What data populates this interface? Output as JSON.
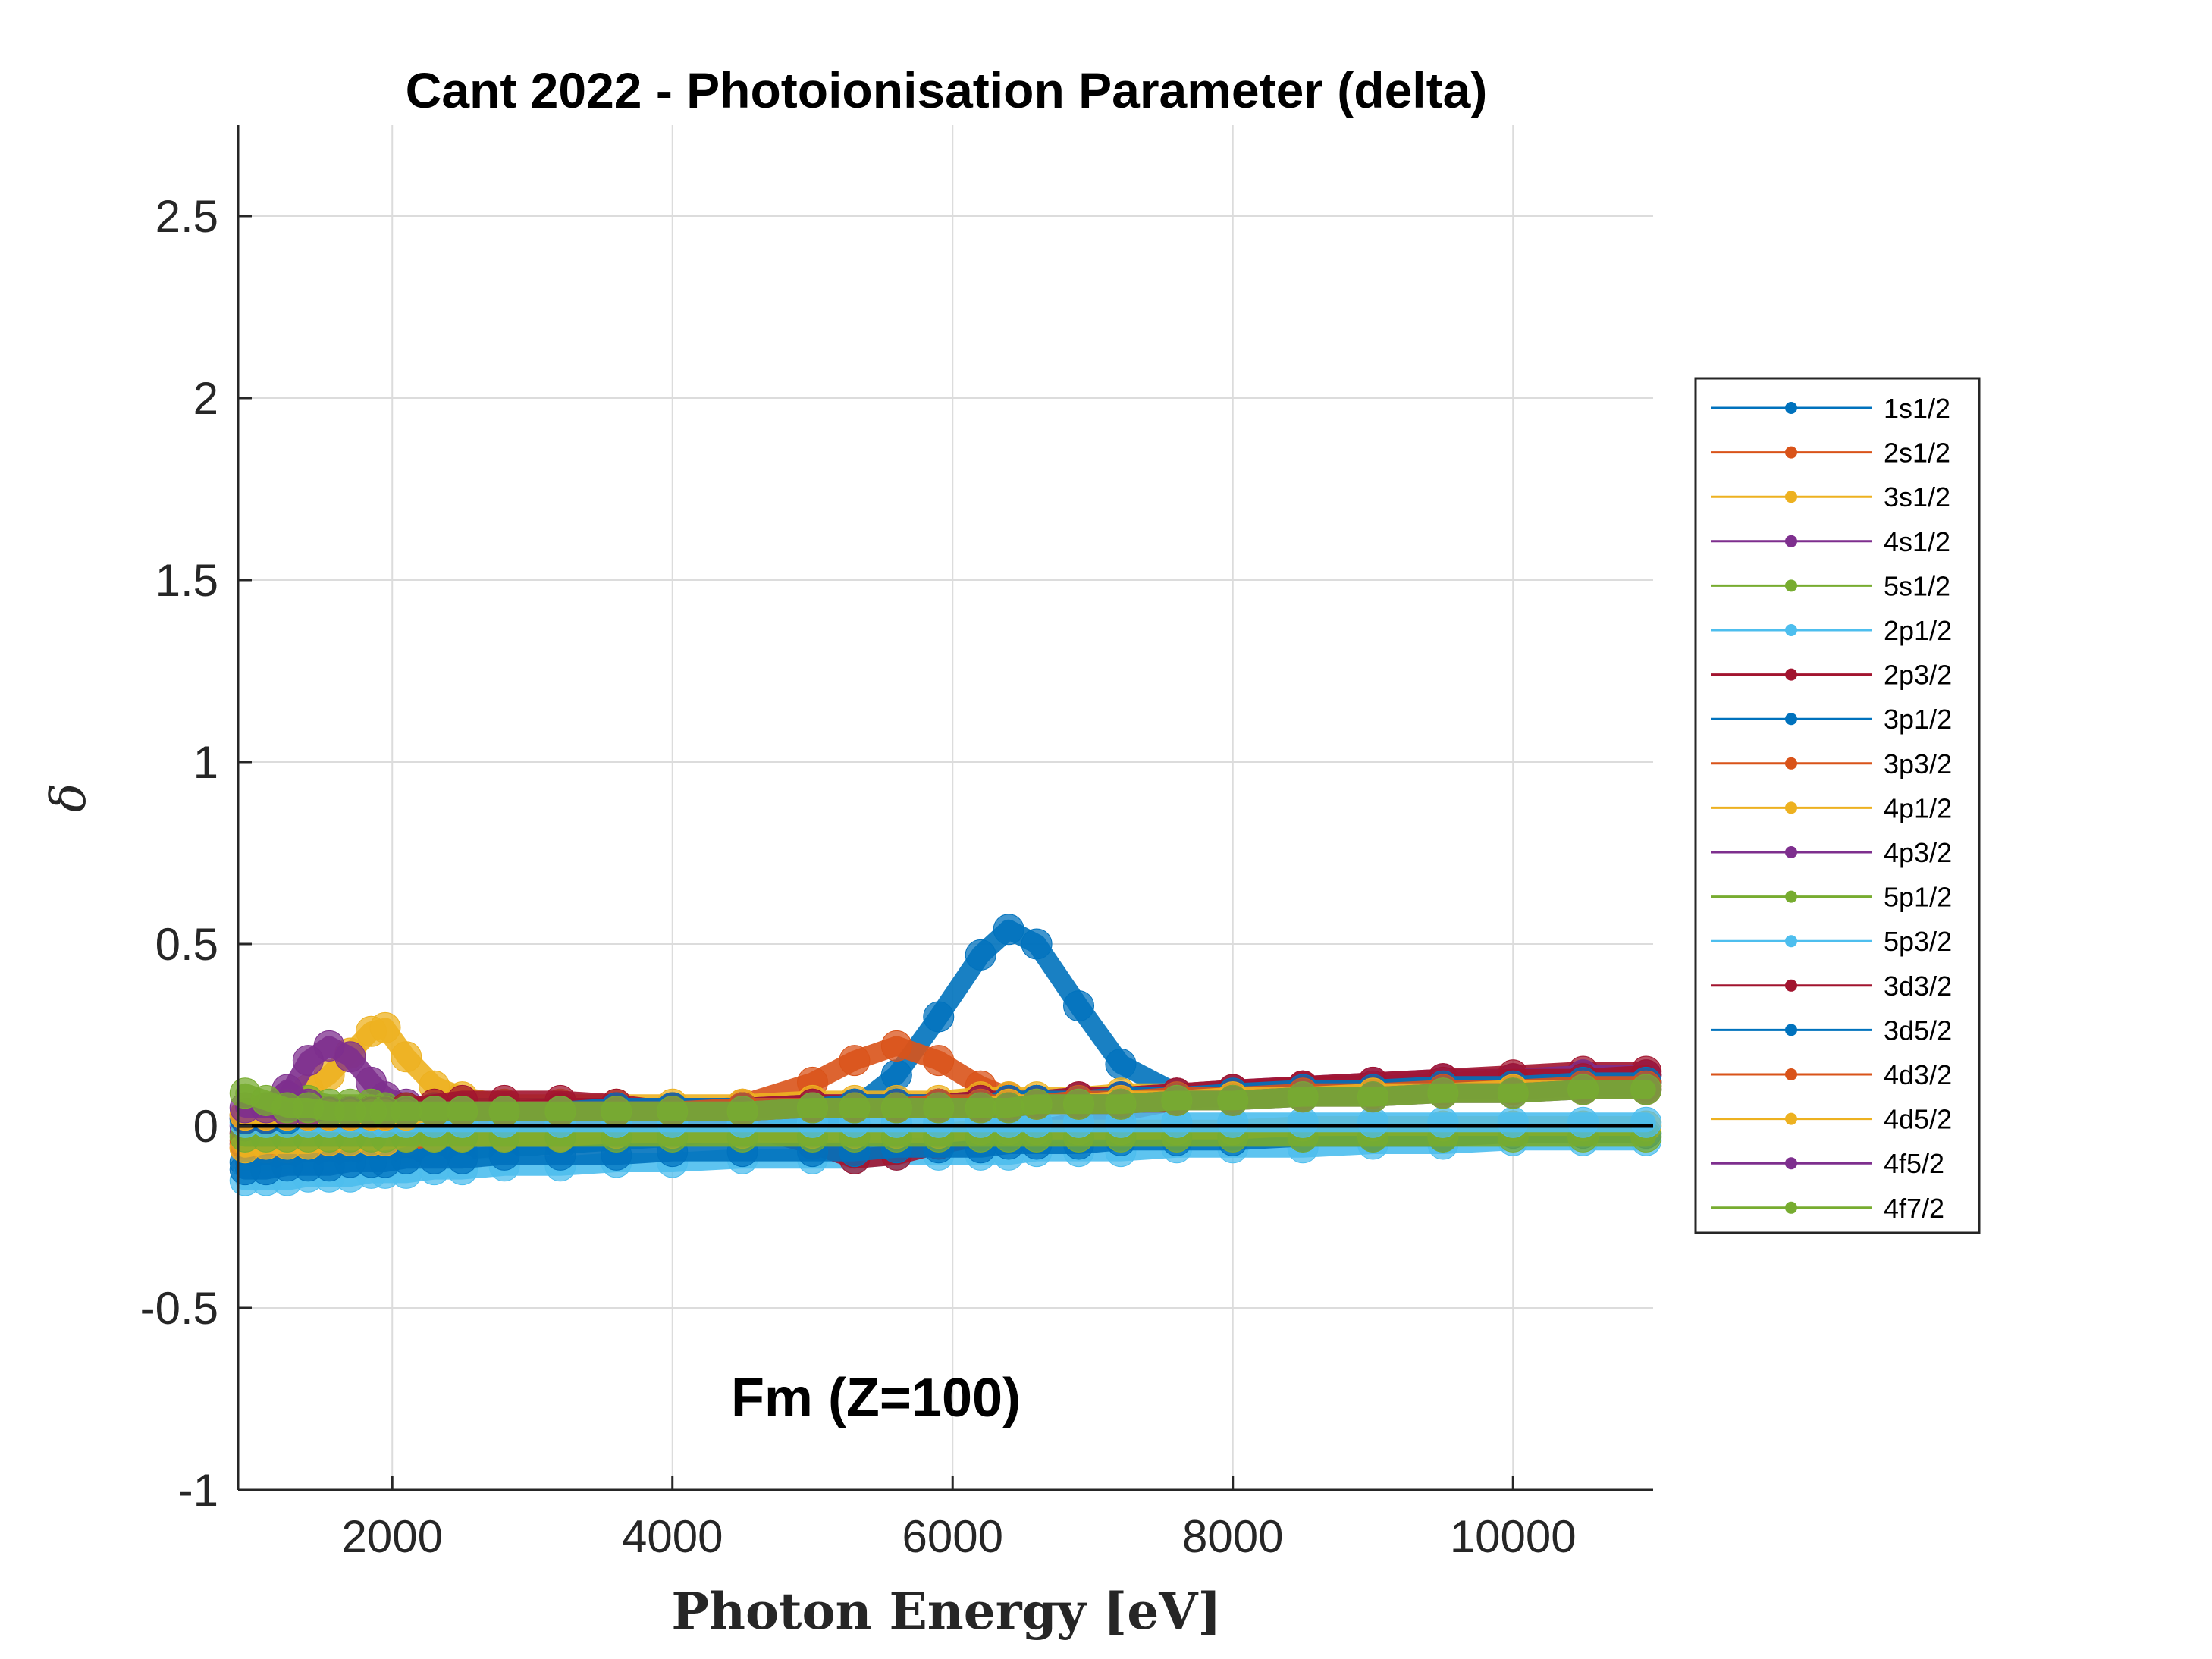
{
  "chart_data": {
    "type": "line",
    "title": "Cant 2022 - Photoionisation Parameter (delta)",
    "xlabel": "Photon Energy [eV]",
    "ylabel": "δ",
    "annotation": "Fm (Z=100)",
    "xlim": [
      900,
      11000
    ],
    "ylim": [
      -1,
      2.75
    ],
    "xticks": [
      2000,
      4000,
      6000,
      8000,
      10000
    ],
    "xtick_labels": [
      "2000",
      "4000",
      "6000",
      "8000",
      "10000"
    ],
    "yticks": [
      -1,
      -0.5,
      0,
      0.5,
      1,
      1.5,
      2,
      2.5
    ],
    "ytick_labels": [
      "-1",
      "-0.5",
      "0",
      "0.5",
      "1",
      "1.5",
      "2",
      "2.5"
    ],
    "grid": true,
    "legend_position": "outside-right",
    "x": [
      950,
      1100,
      1250,
      1400,
      1550,
      1700,
      1850,
      1950,
      2100,
      2300,
      2500,
      2800,
      3200,
      3600,
      4000,
      4500,
      5000,
      5300,
      5600,
      5900,
      6200,
      6400,
      6600,
      6900,
      7200,
      7600,
      8000,
      8500,
      9000,
      9500,
      10000,
      10500,
      10950
    ],
    "series": [
      {
        "name": "1s1/2",
        "color": "#0072BD",
        "values": [
          -0.1,
          -0.1,
          -0.09,
          -0.09,
          -0.09,
          -0.08,
          -0.08,
          -0.08,
          -0.08,
          -0.07,
          -0.07,
          -0.06,
          -0.05,
          -0.04,
          -0.03,
          -0.01,
          0.01,
          0.05,
          0.14,
          0.3,
          0.47,
          0.54,
          0.5,
          0.33,
          0.17,
          0.09,
          0.08,
          0.08,
          0.09,
          0.1,
          0.11,
          0.12,
          0.12
        ]
      },
      {
        "name": "2s1/2",
        "color": "#D95319",
        "values": [
          -0.06,
          -0.06,
          -0.06,
          -0.05,
          -0.05,
          -0.05,
          -0.04,
          -0.04,
          -0.04,
          -0.03,
          -0.03,
          -0.02,
          -0.01,
          0.0,
          0.02,
          0.06,
          0.12,
          0.18,
          0.22,
          0.18,
          0.11,
          0.08,
          0.07,
          0.07,
          0.08,
          0.08,
          0.09,
          0.09,
          0.1,
          0.11,
          0.11,
          0.12,
          0.12
        ]
      },
      {
        "name": "3s1/2",
        "color": "#EDB120",
        "values": [
          -0.02,
          0.0,
          0.04,
          0.1,
          0.14,
          0.2,
          0.26,
          0.27,
          0.19,
          0.11,
          0.08,
          0.06,
          0.06,
          0.06,
          0.06,
          0.06,
          0.07,
          0.07,
          0.07,
          0.07,
          0.08,
          0.08,
          0.08,
          0.08,
          0.09,
          0.09,
          0.1,
          0.1,
          0.11,
          0.11,
          0.12,
          0.12,
          0.12
        ]
      },
      {
        "name": "4s1/2",
        "color": "#7E2F8E",
        "values": [
          -0.02,
          0.02,
          0.08,
          0.18,
          0.22,
          0.19,
          0.12,
          0.08,
          0.06,
          0.05,
          0.05,
          0.05,
          0.05,
          0.05,
          0.05,
          0.05,
          0.06,
          0.06,
          0.06,
          0.06,
          0.07,
          0.07,
          0.07,
          0.08,
          0.08,
          0.09,
          0.1,
          0.11,
          0.12,
          0.13,
          0.13,
          0.14,
          0.14
        ]
      },
      {
        "name": "5s1/2",
        "color": "#77AC30",
        "values": [
          0.03,
          0.05,
          0.06,
          0.07,
          0.06,
          0.06,
          0.06,
          0.05,
          0.05,
          0.05,
          0.05,
          0.05,
          0.05,
          0.05,
          0.05,
          0.05,
          0.05,
          0.06,
          0.06,
          0.06,
          0.06,
          0.06,
          0.07,
          0.07,
          0.07,
          0.08,
          0.08,
          0.09,
          0.09,
          0.1,
          0.1,
          0.11,
          0.11
        ]
      },
      {
        "name": "2p1/2",
        "color": "#4DBEEE",
        "values": [
          -0.15,
          -0.15,
          -0.15,
          -0.14,
          -0.14,
          -0.14,
          -0.13,
          -0.13,
          -0.13,
          -0.12,
          -0.12,
          -0.11,
          -0.11,
          -0.1,
          -0.1,
          -0.09,
          -0.09,
          -0.09,
          -0.08,
          -0.08,
          -0.08,
          -0.08,
          -0.07,
          -0.07,
          -0.07,
          -0.06,
          -0.06,
          -0.06,
          -0.05,
          -0.05,
          -0.04,
          -0.04,
          -0.04
        ]
      },
      {
        "name": "2p3/2",
        "color": "#A2142F",
        "values": [
          -0.05,
          -0.04,
          -0.03,
          -0.02,
          -0.02,
          -0.01,
          0.0,
          0.02,
          0.05,
          0.06,
          0.07,
          0.07,
          0.07,
          0.06,
          0.04,
          0.0,
          -0.05,
          -0.09,
          -0.08,
          -0.05,
          -0.03,
          -0.02,
          -0.01,
          0.01,
          0.04,
          0.07,
          0.09,
          0.11,
          0.12,
          0.13,
          0.14,
          0.15,
          0.15
        ]
      },
      {
        "name": "3p1/2",
        "color": "#0072BD",
        "values": [
          -0.12,
          -0.12,
          -0.11,
          -0.11,
          -0.11,
          -0.1,
          -0.1,
          -0.1,
          -0.09,
          -0.09,
          -0.09,
          -0.08,
          -0.08,
          -0.08,
          -0.07,
          -0.07,
          -0.07,
          -0.07,
          -0.06,
          -0.06,
          -0.06,
          -0.05,
          -0.05,
          -0.05,
          -0.04,
          -0.04,
          -0.04,
          -0.03,
          -0.03,
          -0.03,
          -0.02,
          -0.02,
          -0.02
        ]
      },
      {
        "name": "3p3/2",
        "color": "#D95319",
        "values": [
          -0.04,
          -0.03,
          -0.02,
          -0.01,
          -0.01,
          0.0,
          0.0,
          0.01,
          0.01,
          0.02,
          0.02,
          0.03,
          0.03,
          0.04,
          0.04,
          0.05,
          0.05,
          0.05,
          0.06,
          0.06,
          0.06,
          0.07,
          0.07,
          0.07,
          0.08,
          0.08,
          0.09,
          0.1,
          0.1,
          0.11,
          0.11,
          0.12,
          0.12
        ]
      },
      {
        "name": "4p1/2",
        "color": "#EDB120",
        "values": [
          -0.06,
          -0.05,
          -0.05,
          -0.05,
          -0.04,
          -0.04,
          -0.04,
          -0.04,
          -0.03,
          -0.03,
          -0.03,
          -0.03,
          -0.03,
          -0.02,
          -0.02,
          -0.02,
          -0.02,
          -0.02,
          -0.02,
          -0.02,
          -0.01,
          -0.01,
          -0.01,
          -0.01,
          -0.01,
          -0.01,
          -0.01,
          0.0,
          0.0,
          0.0,
          0.0,
          0.0,
          0.0
        ]
      },
      {
        "name": "4p3/2",
        "color": "#7E2F8E",
        "values": [
          0.0,
          0.05,
          0.1,
          0.06,
          0.04,
          0.04,
          0.04,
          0.04,
          0.04,
          0.04,
          0.04,
          0.04,
          0.04,
          0.04,
          0.04,
          0.05,
          0.05,
          0.05,
          0.05,
          0.06,
          0.06,
          0.06,
          0.07,
          0.07,
          0.08,
          0.08,
          0.09,
          0.1,
          0.11,
          0.12,
          0.13,
          0.14,
          0.14
        ]
      },
      {
        "name": "5p1/2",
        "color": "#77AC30",
        "values": [
          -0.03,
          -0.03,
          -0.03,
          -0.03,
          -0.03,
          -0.03,
          -0.03,
          -0.03,
          -0.03,
          -0.03,
          -0.03,
          -0.03,
          -0.03,
          -0.03,
          -0.03,
          -0.03,
          -0.03,
          -0.03,
          -0.03,
          -0.03,
          -0.03,
          -0.03,
          -0.03,
          -0.03,
          -0.03,
          -0.03,
          -0.03,
          -0.03,
          -0.03,
          -0.03,
          -0.03,
          -0.03,
          -0.03
        ]
      },
      {
        "name": "5p3/2",
        "color": "#4DBEEE",
        "values": [
          0.01,
          0.01,
          0.01,
          0.01,
          0.01,
          0.01,
          0.01,
          0.01,
          0.01,
          0.01,
          0.01,
          0.01,
          0.01,
          0.01,
          0.01,
          0.01,
          0.01,
          0.01,
          0.01,
          0.01,
          0.01,
          0.01,
          0.01,
          0.01,
          0.01,
          0.01,
          0.01,
          0.01,
          0.01,
          0.01,
          0.01,
          0.01,
          0.01
        ]
      },
      {
        "name": "3d3/2",
        "color": "#A2142F",
        "values": [
          0.02,
          0.02,
          0.03,
          0.03,
          0.03,
          0.03,
          0.04,
          0.04,
          0.04,
          0.04,
          0.04,
          0.04,
          0.05,
          0.05,
          0.05,
          0.05,
          0.06,
          0.06,
          0.06,
          0.06,
          0.07,
          0.07,
          0.07,
          0.08,
          0.08,
          0.09,
          0.1,
          0.11,
          0.11,
          0.12,
          0.13,
          0.13,
          0.14
        ]
      },
      {
        "name": "3d5/2",
        "color": "#0072BD",
        "values": [
          0.02,
          0.02,
          0.02,
          0.03,
          0.03,
          0.03,
          0.03,
          0.03,
          0.04,
          0.04,
          0.04,
          0.04,
          0.04,
          0.05,
          0.05,
          0.05,
          0.05,
          0.06,
          0.06,
          0.06,
          0.06,
          0.07,
          0.07,
          0.07,
          0.08,
          0.08,
          0.09,
          0.1,
          0.1,
          0.11,
          0.11,
          0.12,
          0.12
        ]
      },
      {
        "name": "4d3/2",
        "color": "#D95319",
        "values": [
          0.03,
          0.03,
          0.03,
          0.03,
          0.03,
          0.03,
          0.03,
          0.03,
          0.04,
          0.04,
          0.04,
          0.04,
          0.04,
          0.04,
          0.04,
          0.05,
          0.05,
          0.05,
          0.05,
          0.06,
          0.06,
          0.06,
          0.06,
          0.07,
          0.07,
          0.08,
          0.08,
          0.09,
          0.09,
          0.1,
          0.1,
          0.11,
          0.11
        ]
      },
      {
        "name": "4d5/2",
        "color": "#EDB120",
        "values": [
          0.03,
          0.03,
          0.03,
          0.03,
          0.03,
          0.03,
          0.03,
          0.03,
          0.03,
          0.04,
          0.04,
          0.04,
          0.04,
          0.04,
          0.04,
          0.04,
          0.05,
          0.05,
          0.05,
          0.05,
          0.05,
          0.06,
          0.06,
          0.06,
          0.07,
          0.07,
          0.08,
          0.08,
          0.09,
          0.09,
          0.1,
          0.1,
          0.1
        ]
      },
      {
        "name": "4f5/2",
        "color": "#7E2F8E",
        "values": [
          0.05,
          0.05,
          0.04,
          0.04,
          0.04,
          0.04,
          0.04,
          0.04,
          0.04,
          0.04,
          0.04,
          0.04,
          0.04,
          0.04,
          0.04,
          0.04,
          0.05,
          0.05,
          0.05,
          0.05,
          0.05,
          0.05,
          0.06,
          0.06,
          0.06,
          0.07,
          0.07,
          0.08,
          0.08,
          0.09,
          0.09,
          0.1,
          0.1
        ]
      },
      {
        "name": "4f7/2",
        "color": "#77AC30",
        "values": [
          0.09,
          0.07,
          0.05,
          0.05,
          0.04,
          0.04,
          0.04,
          0.04,
          0.04,
          0.04,
          0.04,
          0.04,
          0.04,
          0.04,
          0.04,
          0.04,
          0.05,
          0.05,
          0.05,
          0.05,
          0.05,
          0.05,
          0.06,
          0.06,
          0.06,
          0.07,
          0.07,
          0.08,
          0.08,
          0.09,
          0.09,
          0.1,
          0.1
        ]
      }
    ],
    "reference_line": {
      "y": 0,
      "color": "#000000"
    }
  }
}
